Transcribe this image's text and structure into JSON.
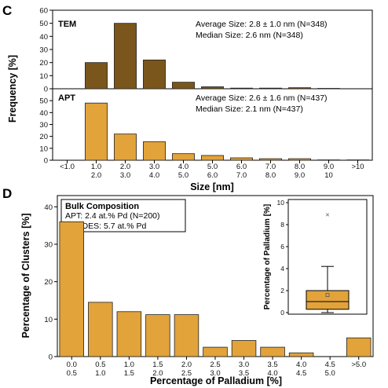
{
  "figure": {
    "panel_c_label": "C",
    "panel_d_label": "D"
  },
  "chart_data": [
    {
      "type": "bar",
      "panel": "C-top",
      "name": "TEM",
      "annotation": [
        "Average Size: 2.8 ± 1.0 nm (N=348)",
        "Median Size: 2.6 nm (N=348)"
      ],
      "categories": [
        "<1.0",
        "1.0-2.0",
        "2.0-3.0",
        "3.0-4.0",
        "4.0-5.0",
        "5.0-6.0",
        "6.0-7.0",
        "7.0-8.0",
        "8.0-9.0",
        "9.0-10",
        ">10"
      ],
      "values": [
        0,
        20,
        50,
        22,
        5,
        1.5,
        0.5,
        0.5,
        0.8,
        0.3,
        0
      ],
      "ylim": [
        0,
        60
      ],
      "yticks": [
        0,
        10,
        20,
        30,
        40,
        50,
        60
      ],
      "color": "#7a561c"
    },
    {
      "type": "bar",
      "panel": "C-bottom",
      "name": "APT",
      "annotation": [
        "Average Size: 2.6 ± 1.6 nm (N=437)",
        "Median Size: 2.1 nm (N=437)"
      ],
      "categories": [
        "<1.0",
        "1.0-2.0",
        "2.0-3.0",
        "3.0-4.0",
        "4.0-5.0",
        "5.0-6.0",
        "6.0-7.0",
        "7.0-8.0",
        "8.0-9.0",
        "9.0-10",
        ">10"
      ],
      "values": [
        0,
        48,
        22,
        15.5,
        5.5,
        4,
        2,
        1.3,
        1.3,
        0.3,
        0.3
      ],
      "ylim": [
        0,
        60
      ],
      "yticks": [
        0,
        10,
        20,
        30,
        40,
        50
      ],
      "color": "#e2a33a"
    },
    {
      "type": "bar",
      "panel": "D",
      "categories_top": [
        "0.0",
        "0.5",
        "1.0",
        "1.5",
        "2.0",
        "2.5",
        "3.0",
        "3.5",
        "4.0",
        "4.5",
        ">5.0"
      ],
      "categories_bottom": [
        "0.5",
        "1.0",
        "1.5",
        "2.0",
        "2.5",
        "3.0",
        "3.5",
        "4.0",
        "4.5",
        "5.0",
        ""
      ],
      "values": [
        36,
        14.5,
        12,
        11.2,
        11.2,
        2.5,
        4.3,
        2.5,
        1,
        0,
        5
      ],
      "ylim": [
        0,
        43
      ],
      "yticks": [
        0,
        10,
        20,
        30,
        40
      ],
      "xlabel": "Percentage of Palladium [%]",
      "ylabel": "Percentage of Clusters [%]",
      "legend_box": {
        "title": "Bulk Composition",
        "lines": [
          "APT: 2.4 at.% Pd  (N=200)",
          "ICP-OES: 5.7 at.% Pd"
        ]
      },
      "color": "#e2a33a"
    },
    {
      "type": "box",
      "panel": "D-inset",
      "ylabel": "Percentage of Palladium [%]",
      "ylim": [
        0,
        10
      ],
      "yticks": [
        0,
        2,
        4,
        6,
        8,
        10
      ],
      "whisker_low": 0,
      "q1": 0.3,
      "median": 1.0,
      "mean": 1.6,
      "q3": 2.0,
      "whisker_high": 4.2,
      "outlier_max": 8.9,
      "color": "#e2a33a"
    }
  ],
  "shared_c": {
    "xlabel": "Size [nm]",
    "ylabel": "Frequency [%]",
    "tick_top": [
      "<1.0",
      "1.0",
      "2.0",
      "3.0",
      "4.0",
      "5.0",
      "6.0",
      "7.0",
      "8.0",
      "9.0",
      ">10"
    ],
    "tick_bottom": [
      "",
      "2.0",
      "3.0",
      "4.0",
      "5.0",
      "6.0",
      "7.0",
      "8.0",
      "9.0",
      "10",
      ""
    ]
  }
}
